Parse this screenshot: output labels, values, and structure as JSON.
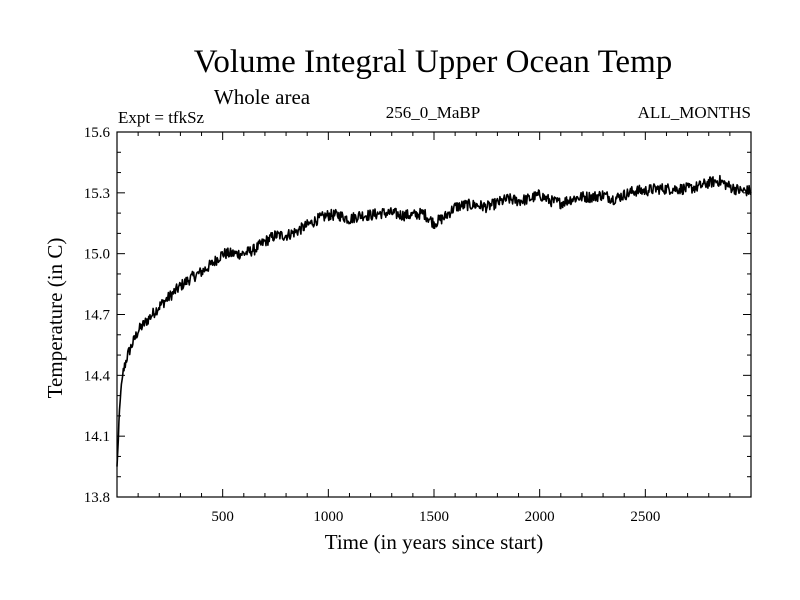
{
  "chart_data": {
    "type": "line",
    "title": "Volume Integral Upper Ocean Temp",
    "subtitle": "Whole area",
    "expt_label": "Expt = tfkSz",
    "run_label": "256_0_MaBP",
    "months_label": "ALL_MONTHS",
    "xlabel": "Time (in years since start)",
    "ylabel": "Temperature (in C)",
    "xlim": [
      0,
      3000
    ],
    "ylim": [
      13.8,
      15.6
    ],
    "x_ticks": [
      500,
      1000,
      1500,
      2000,
      2500
    ],
    "x_tick_labels": [
      "500",
      "1000",
      "1500",
      "2000",
      "2500"
    ],
    "y_ticks": [
      13.8,
      14.1,
      14.4,
      14.7,
      15.0,
      15.3,
      15.6
    ],
    "y_tick_labels": [
      "13.8",
      "14.1",
      "14.4",
      "14.7",
      "15.0",
      "15.3",
      "15.6"
    ],
    "grid": false,
    "series": [
      {
        "name": "Temperature",
        "color": "#000000",
        "x": [
          0,
          5,
          10,
          20,
          30,
          50,
          75,
          100,
          150,
          200,
          250,
          300,
          350,
          400,
          450,
          500,
          550,
          600,
          650,
          700,
          750,
          800,
          850,
          900,
          950,
          1000,
          1050,
          1100,
          1150,
          1200,
          1250,
          1300,
          1350,
          1400,
          1450,
          1500,
          1550,
          1600,
          1650,
          1700,
          1750,
          1800,
          1850,
          1900,
          1950,
          2000,
          2050,
          2100,
          2150,
          2200,
          2250,
          2300,
          2350,
          2400,
          2450,
          2500,
          2550,
          2600,
          2650,
          2700,
          2750,
          2800,
          2850,
          2900,
          2950,
          3000
        ],
        "values": [
          13.95,
          14.05,
          14.2,
          14.35,
          14.42,
          14.5,
          14.56,
          14.62,
          14.68,
          14.74,
          14.79,
          14.84,
          14.88,
          14.91,
          14.95,
          15.0,
          15.0,
          15.0,
          15.02,
          15.06,
          15.09,
          15.09,
          15.11,
          15.14,
          15.17,
          15.19,
          15.19,
          15.17,
          15.19,
          15.19,
          15.2,
          15.2,
          15.19,
          15.19,
          15.2,
          15.15,
          15.18,
          15.23,
          15.24,
          15.24,
          15.23,
          15.25,
          15.27,
          15.26,
          15.27,
          15.29,
          15.26,
          15.25,
          15.27,
          15.28,
          15.28,
          15.29,
          15.27,
          15.29,
          15.31,
          15.31,
          15.32,
          15.32,
          15.32,
          15.32,
          15.33,
          15.35,
          15.36,
          15.33,
          15.31,
          15.31
        ]
      }
    ]
  }
}
